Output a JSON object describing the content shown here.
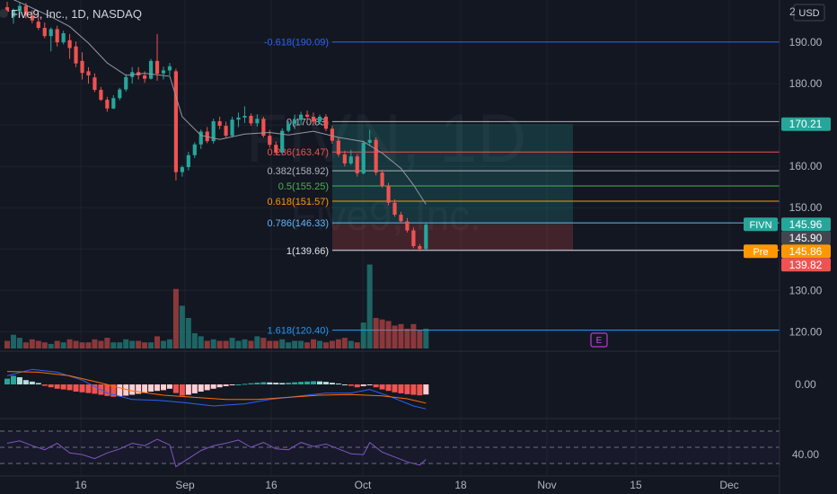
{
  "header": {
    "title": "Five9, Inc., 1D, NASDAQ",
    "currency": "USD",
    "corner_fragment": "2"
  },
  "watermark": {
    "ticker": "FIVN, 1D",
    "company": "Five9, Inc."
  },
  "colors": {
    "background": "#131722",
    "up": "#26a69a",
    "down": "#ef5350",
    "grid": "#1e222d",
    "axis_text": "#b2b5be",
    "ma_line": "#9598a1",
    "macd_line": "#2962ff",
    "signal_line": "#ff6d00",
    "rsi_line": "#7e57c2",
    "band": "#9598a1",
    "fib_neg": "#2962ff",
    "fib_0": "#b2b5be",
    "fib_236": "#ef5350",
    "fib_382": "#b2b5be",
    "fib_5": "#4caf50",
    "fib_618": "#ff9800",
    "fib_786": "#64b5f6",
    "fib_1": "#e0e3eb",
    "fib_1618": "#2196f3",
    "earnings": "#e040fb"
  },
  "chart_data": {
    "type": "candlestick",
    "x_ticks": [
      "16",
      "Sep",
      "16",
      "Oct",
      "18",
      "Nov",
      "15",
      "Dec"
    ],
    "y_ticks": [
      190,
      180,
      170,
      160,
      150,
      140,
      130,
      120
    ],
    "ylim": [
      115.5,
      198.5
    ],
    "macd_ticks": [
      "0.00"
    ],
    "rsi_ticks": [
      "40.00"
    ],
    "candles": [
      {
        "o": 198.5,
        "h": 199.8,
        "l": 196.8,
        "c": 197.4
      },
      {
        "o": 196.2,
        "h": 198.2,
        "l": 194.5,
        "c": 197.8
      },
      {
        "o": 197.5,
        "h": 199.6,
        "l": 196.2,
        "c": 198.8
      },
      {
        "o": 198.8,
        "h": 199.5,
        "l": 195.8,
        "c": 196.5
      },
      {
        "o": 196.5,
        "h": 197.8,
        "l": 194.6,
        "c": 195.3
      },
      {
        "o": 195.0,
        "h": 196.5,
        "l": 193.0,
        "c": 193.5
      },
      {
        "o": 193.5,
        "h": 194.8,
        "l": 191.0,
        "c": 191.5
      },
      {
        "o": 191.5,
        "h": 193.6,
        "l": 187.8,
        "c": 193.2
      },
      {
        "o": 193.2,
        "h": 194.0,
        "l": 189.0,
        "c": 190.0
      },
      {
        "o": 190.0,
        "h": 192.8,
        "l": 189.5,
        "c": 192.2
      },
      {
        "o": 190.5,
        "h": 192.0,
        "l": 186.0,
        "c": 188.6
      },
      {
        "o": 189.0,
        "h": 190.2,
        "l": 184.0,
        "c": 184.9
      },
      {
        "o": 185.5,
        "h": 187.6,
        "l": 181.0,
        "c": 182.6
      },
      {
        "o": 183.0,
        "h": 184.0,
        "l": 180.0,
        "c": 182.0
      },
      {
        "o": 181.5,
        "h": 182.5,
        "l": 178.0,
        "c": 178.5
      },
      {
        "o": 178.5,
        "h": 179.2,
        "l": 175.8,
        "c": 176.1
      },
      {
        "o": 176.1,
        "h": 176.8,
        "l": 173.2,
        "c": 174.0
      },
      {
        "o": 174.0,
        "h": 177.2,
        "l": 173.8,
        "c": 176.5
      },
      {
        "o": 176.5,
        "h": 179.0,
        "l": 176.0,
        "c": 178.6
      },
      {
        "o": 178.6,
        "h": 182.3,
        "l": 178.1,
        "c": 181.6
      },
      {
        "o": 181.6,
        "h": 184.0,
        "l": 180.0,
        "c": 182.8
      },
      {
        "o": 182.8,
        "h": 184.0,
        "l": 181.0,
        "c": 182.0
      },
      {
        "o": 182.0,
        "h": 183.0,
        "l": 180.2,
        "c": 181.2
      },
      {
        "o": 181.2,
        "h": 186.0,
        "l": 181.0,
        "c": 185.5
      },
      {
        "o": 185.5,
        "h": 192.0,
        "l": 180.7,
        "c": 182.4
      },
      {
        "o": 182.5,
        "h": 184.1,
        "l": 181.0,
        "c": 183.2
      },
      {
        "o": 183.2,
        "h": 185.0,
        "l": 182.0,
        "c": 184.2
      },
      {
        "o": 183.0,
        "h": 183.6,
        "l": 156.6,
        "c": 158.6
      },
      {
        "o": 158.6,
        "h": 160.2,
        "l": 157.5,
        "c": 159.8
      },
      {
        "o": 159.8,
        "h": 163.5,
        "l": 159.0,
        "c": 162.7
      },
      {
        "o": 162.7,
        "h": 165.8,
        "l": 162.0,
        "c": 165.3
      },
      {
        "o": 165.3,
        "h": 168.9,
        "l": 164.2,
        "c": 168.4
      },
      {
        "o": 168.4,
        "h": 169.5,
        "l": 165.6,
        "c": 166.1
      },
      {
        "o": 166.1,
        "h": 171.5,
        "l": 165.5,
        "c": 170.9
      },
      {
        "o": 170.9,
        "h": 172.0,
        "l": 169.0,
        "c": 169.8
      },
      {
        "o": 169.8,
        "h": 170.8,
        "l": 167.0,
        "c": 167.4
      },
      {
        "o": 167.4,
        "h": 172.0,
        "l": 167.0,
        "c": 171.3
      },
      {
        "o": 171.3,
        "h": 173.0,
        "l": 169.5,
        "c": 171.8
      },
      {
        "o": 171.8,
        "h": 174.5,
        "l": 170.5,
        "c": 172.2
      },
      {
        "o": 172.2,
        "h": 172.8,
        "l": 169.8,
        "c": 170.4
      },
      {
        "o": 170.4,
        "h": 172.6,
        "l": 169.6,
        "c": 171.5
      },
      {
        "o": 171.5,
        "h": 172.0,
        "l": 167.0,
        "c": 167.4
      },
      {
        "o": 167.4,
        "h": 168.8,
        "l": 164.5,
        "c": 165.2
      },
      {
        "o": 165.2,
        "h": 166.0,
        "l": 162.8,
        "c": 163.3
      },
      {
        "o": 163.3,
        "h": 169.2,
        "l": 162.9,
        "c": 168.6
      },
      {
        "o": 168.6,
        "h": 171.0,
        "l": 168.2,
        "c": 170.3
      },
      {
        "o": 170.3,
        "h": 172.5,
        "l": 169.0,
        "c": 171.2
      },
      {
        "o": 171.2,
        "h": 173.2,
        "l": 170.0,
        "c": 172.5
      },
      {
        "o": 172.5,
        "h": 173.5,
        "l": 171.0,
        "c": 172.0
      },
      {
        "o": 172.0,
        "h": 173.0,
        "l": 170.2,
        "c": 170.8
      },
      {
        "o": 170.8,
        "h": 172.5,
        "l": 170.2,
        "c": 172.0
      },
      {
        "o": 172.0,
        "h": 172.6,
        "l": 168.5,
        "c": 169.1
      },
      {
        "o": 169.1,
        "h": 169.8,
        "l": 165.5,
        "c": 166.2
      },
      {
        "o": 166.2,
        "h": 166.9,
        "l": 162.3,
        "c": 162.9
      },
      {
        "o": 162.9,
        "h": 163.8,
        "l": 160.0,
        "c": 160.7
      },
      {
        "o": 160.7,
        "h": 164.0,
        "l": 160.3,
        "c": 162.4
      },
      {
        "o": 162.4,
        "h": 163.0,
        "l": 157.5,
        "c": 158.3
      },
      {
        "o": 158.3,
        "h": 166.2,
        "l": 158.0,
        "c": 165.7
      },
      {
        "o": 165.7,
        "h": 168.8,
        "l": 165.0,
        "c": 166.4
      },
      {
        "o": 166.4,
        "h": 167.0,
        "l": 157.8,
        "c": 158.5
      },
      {
        "o": 158.5,
        "h": 159.2,
        "l": 154.8,
        "c": 155.3
      },
      {
        "o": 155.3,
        "h": 156.0,
        "l": 150.5,
        "c": 151.2
      },
      {
        "o": 151.2,
        "h": 152.0,
        "l": 147.8,
        "c": 148.3
      },
      {
        "o": 148.3,
        "h": 149.0,
        "l": 146.2,
        "c": 146.7
      },
      {
        "o": 146.7,
        "h": 147.5,
        "l": 144.0,
        "c": 144.5
      },
      {
        "o": 144.5,
        "h": 145.2,
        "l": 140.2,
        "c": 140.7
      },
      {
        "o": 140.7,
        "h": 141.2,
        "l": 139.4,
        "c": 140.0
      },
      {
        "o": 140.0,
        "h": 146.2,
        "l": 139.8,
        "c": 145.9
      }
    ],
    "volumes": [
      5,
      9,
      7,
      4,
      6,
      5,
      4,
      3,
      5,
      4,
      6,
      5,
      4,
      4,
      6,
      5,
      7,
      4,
      4,
      6,
      5,
      5,
      4,
      4,
      8,
      5,
      6,
      39,
      28,
      20,
      10,
      8,
      5,
      6,
      5,
      5,
      7,
      5,
      6,
      5,
      8,
      7,
      5,
      5,
      6,
      4,
      5,
      5,
      4,
      6,
      5,
      4,
      5,
      6,
      7,
      5,
      4,
      17,
      55,
      20,
      19,
      18,
      15,
      16,
      13,
      16,
      12,
      13
    ],
    "ma": [
      [
        0,
        201.0
      ],
      [
        3,
        199.0
      ],
      [
        7,
        196.2
      ],
      [
        10,
        193.8
      ],
      [
        13,
        189.8
      ],
      [
        16,
        185.0
      ],
      [
        19,
        182.0
      ],
      [
        22,
        182.5
      ],
      [
        26,
        181.8
      ],
      [
        28,
        172.0
      ],
      [
        31,
        167.5
      ],
      [
        34,
        166.5
      ],
      [
        38,
        167.8
      ],
      [
        42,
        168.2
      ],
      [
        45,
        167.6
      ],
      [
        49,
        168.5
      ],
      [
        53,
        167.0
      ],
      [
        57,
        166.0
      ],
      [
        60,
        163.2
      ],
      [
        63,
        159.5
      ],
      [
        65,
        155.5
      ],
      [
        67,
        150.8
      ]
    ],
    "macd_hist": [
      0.4,
      0.6,
      0.5,
      0.3,
      0.2,
      0.1,
      -0.1,
      -0.2,
      -0.3,
      -0.35,
      -0.4,
      -0.5,
      -0.55,
      -0.6,
      -0.65,
      -0.72,
      -0.8,
      -0.86,
      -0.82,
      -0.78,
      -0.72,
      -0.65,
      -0.58,
      -0.5,
      -0.45,
      -0.4,
      -0.3,
      -0.6,
      -0.78,
      -0.72,
      -0.62,
      -0.5,
      -0.4,
      -0.3,
      -0.2,
      -0.12,
      -0.06,
      0.0,
      0.04,
      0.08,
      0.12,
      0.15,
      0.14,
      0.12,
      0.1,
      0.12,
      0.15,
      0.18,
      0.2,
      0.22,
      0.21,
      0.18,
      0.12,
      0.06,
      0.0,
      -0.1,
      -0.2,
      -0.12,
      -0.05,
      -0.2,
      -0.35,
      -0.45,
      -0.55,
      -0.62,
      -0.68,
      -0.72,
      -0.76,
      -0.7
    ],
    "macd_line": [
      [
        0,
        0.6
      ],
      [
        4,
        1.05
      ],
      [
        8,
        0.85
      ],
      [
        12,
        0.3
      ],
      [
        16,
        -0.6
      ],
      [
        20,
        -1.05
      ],
      [
        24,
        -1.1
      ],
      [
        28,
        -1.25
      ],
      [
        33,
        -1.5
      ],
      [
        38,
        -1.35
      ],
      [
        42,
        -1.05
      ],
      [
        47,
        -0.8
      ],
      [
        51,
        -0.6
      ],
      [
        55,
        -0.6
      ],
      [
        58,
        -0.35
      ],
      [
        61,
        -0.8
      ],
      [
        65,
        -1.5
      ],
      [
        67,
        -1.7
      ]
    ],
    "signal_line": [
      [
        0,
        0.9
      ],
      [
        5,
        0.85
      ],
      [
        10,
        0.6
      ],
      [
        15,
        0.1
      ],
      [
        20,
        -0.45
      ],
      [
        25,
        -0.75
      ],
      [
        30,
        -0.9
      ],
      [
        35,
        -1.05
      ],
      [
        40,
        -1.05
      ],
      [
        45,
        -0.9
      ],
      [
        50,
        -0.75
      ],
      [
        55,
        -0.7
      ],
      [
        60,
        -0.8
      ],
      [
        64,
        -1.0
      ],
      [
        67,
        -1.3
      ]
    ],
    "rsi": [
      [
        0,
        55
      ],
      [
        2,
        58
      ],
      [
        4,
        52
      ],
      [
        6,
        47
      ],
      [
        8,
        55
      ],
      [
        10,
        43
      ],
      [
        12,
        41
      ],
      [
        14,
        36
      ],
      [
        16,
        43
      ],
      [
        18,
        48
      ],
      [
        20,
        55
      ],
      [
        22,
        52
      ],
      [
        24,
        60
      ],
      [
        26,
        53
      ],
      [
        27,
        26
      ],
      [
        29,
        36
      ],
      [
        31,
        46
      ],
      [
        33,
        52
      ],
      [
        35,
        55
      ],
      [
        37,
        59
      ],
      [
        39,
        50
      ],
      [
        41,
        56
      ],
      [
        43,
        48
      ],
      [
        45,
        47
      ],
      [
        47,
        56
      ],
      [
        49,
        51
      ],
      [
        51,
        54
      ],
      [
        53,
        48
      ],
      [
        55,
        42
      ],
      [
        57,
        41
      ],
      [
        58,
        56
      ],
      [
        60,
        44
      ],
      [
        62,
        38
      ],
      [
        64,
        32
      ],
      [
        66,
        28
      ],
      [
        67,
        35
      ]
    ],
    "fibs": [
      {
        "label": "-0.618(190.09)",
        "value": 190.09,
        "key": "fib_neg"
      },
      {
        "label": "0(170.83)",
        "value": 170.83,
        "key": "fib_0"
      },
      {
        "label": "0.236(163.47)",
        "value": 163.47,
        "key": "fib_236"
      },
      {
        "label": "0.382(158.92)",
        "value": 158.92,
        "key": "fib_382"
      },
      {
        "label": "0.5(155.25)",
        "value": 155.25,
        "key": "fib_5"
      },
      {
        "label": "0.618(151.57)",
        "value": 151.57,
        "key": "fib_618"
      },
      {
        "label": "0.786(146.33)",
        "value": 146.33,
        "key": "fib_786"
      },
      {
        "label": "1(139.66)",
        "value": 139.66,
        "key": "fib_1"
      },
      {
        "label": "1.618(120.40)",
        "value": 120.4,
        "key": "fib_1618"
      }
    ],
    "position_box": {
      "top": 170.21,
      "entry": 145.96,
      "bottom": 139.82
    },
    "price_tags": [
      {
        "value": 170.21,
        "text": "170.21",
        "bg": "#26a69a"
      },
      {
        "value": 145.96,
        "text": "145.96",
        "bg": "#26a69a",
        "badge": "FIVN"
      },
      {
        "value": 145.9,
        "text": "145.90",
        "bg": "#434651"
      },
      {
        "value": 145.86,
        "text": "145.86",
        "bg": "#ff9800",
        "badge": "Pre"
      },
      {
        "value": 139.82,
        "text": "139.82",
        "bg": "#ef5350"
      }
    ],
    "earnings_marker": "E"
  }
}
